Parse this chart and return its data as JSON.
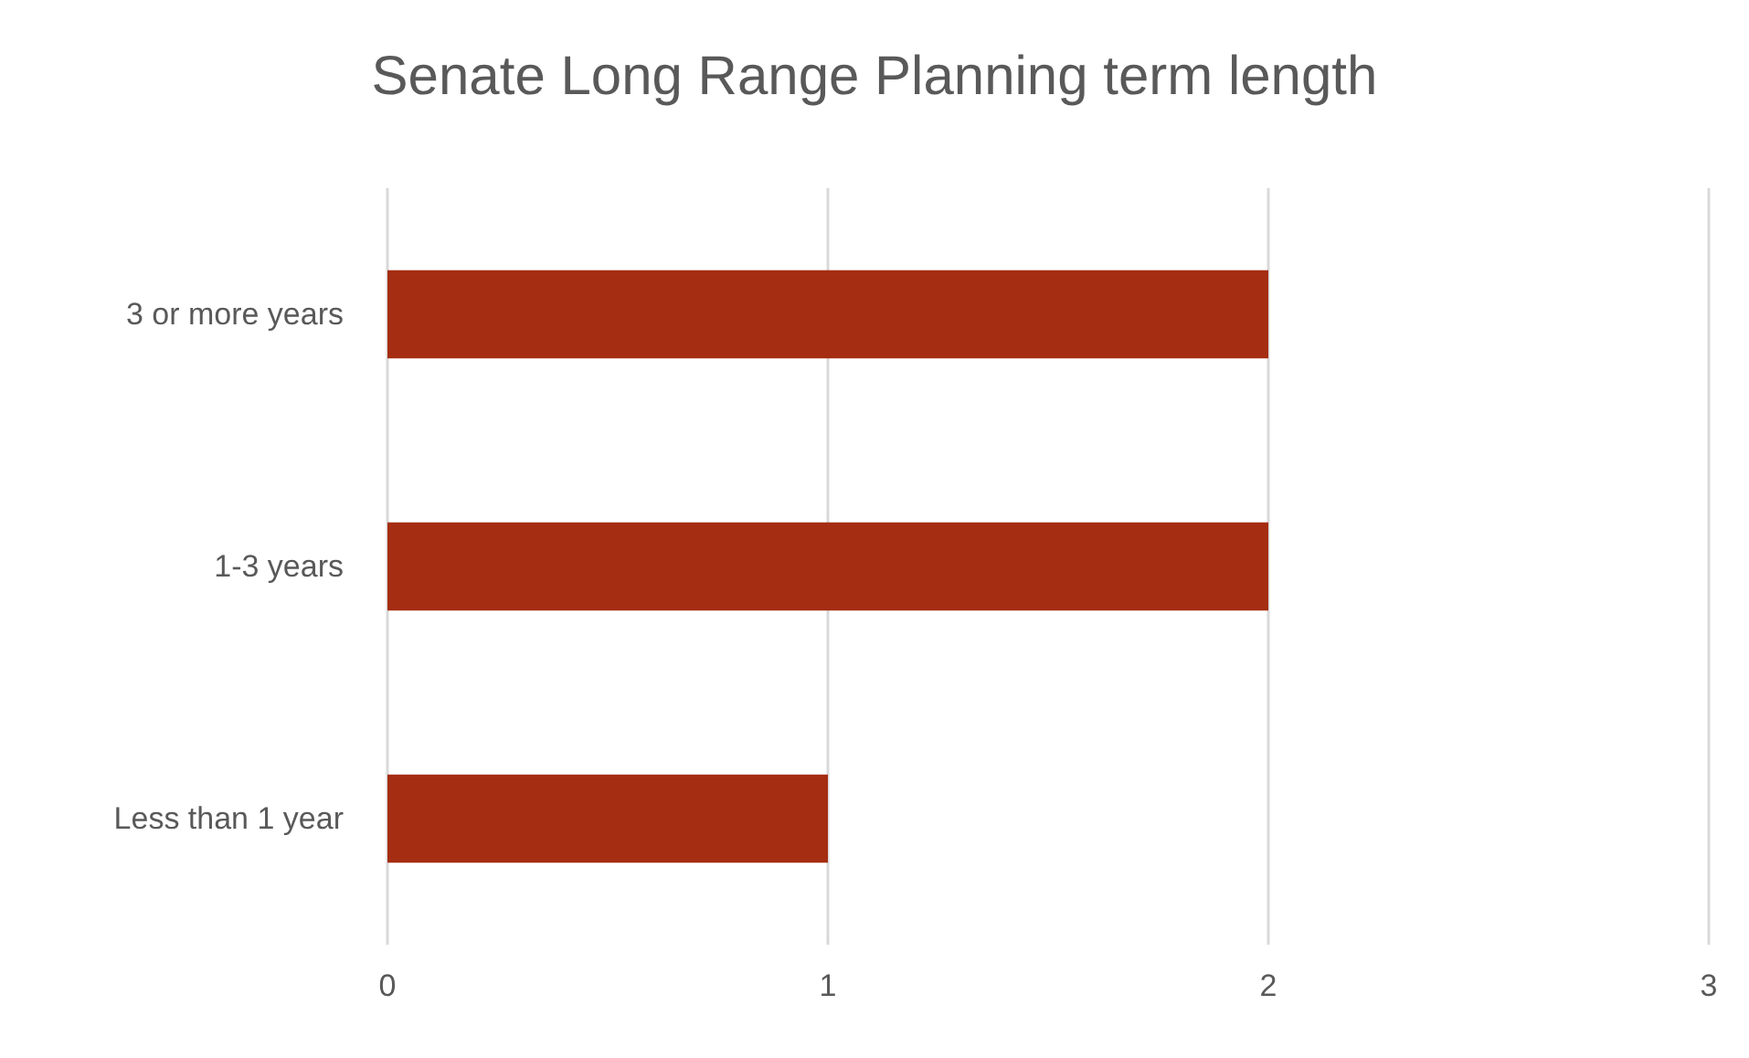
{
  "chart_data": {
    "type": "bar",
    "title": "Senate Long Range Planning term length",
    "orientation": "horizontal",
    "categories": [
      "3 or more years",
      "1-3 years",
      "Less than 1 year"
    ],
    "values": [
      2,
      2,
      1
    ],
    "color": "#a52d11",
    "xlim": [
      0,
      3
    ],
    "xticks": [
      0,
      1,
      2,
      3
    ],
    "grid": "x"
  }
}
